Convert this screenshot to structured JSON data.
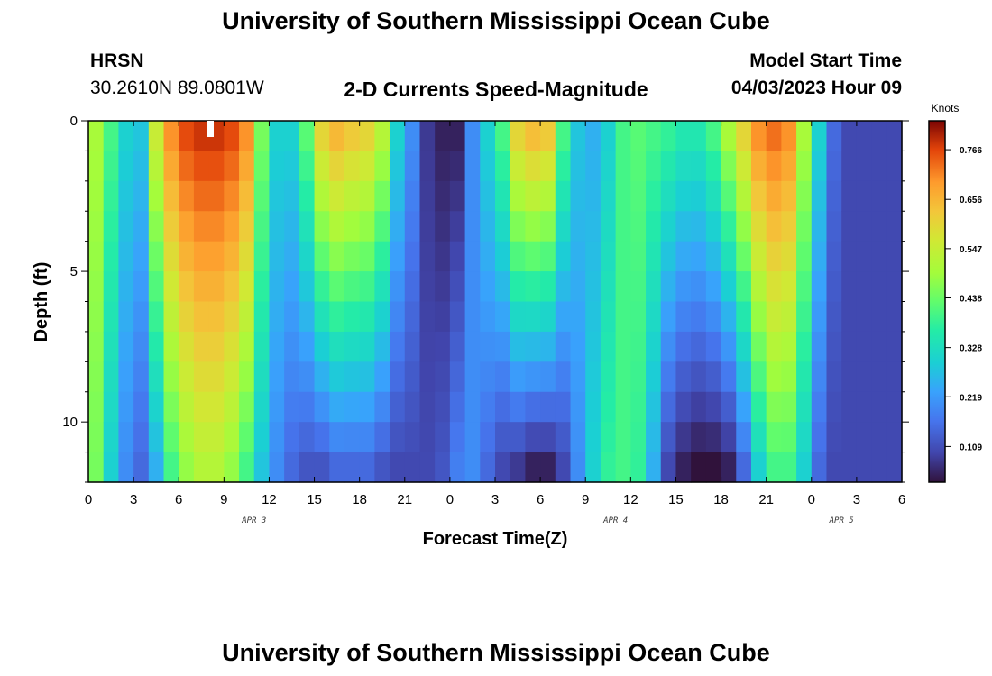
{
  "page": {
    "title": "University of Southern Mississippi Ocean Cube",
    "footer_title": "University of Southern Mississippi Ocean Cube",
    "station": "HRSN",
    "coords": "30.2610N  89.0801W",
    "plot_title": "2-D Currents Speed-Magnitude",
    "model_label": "Model Start Time",
    "model_time": "04/03/2023 Hour 09"
  },
  "chart_data": {
    "type": "heatmap",
    "title": "2-D Currents Speed-Magnitude",
    "xlabel": "Forecast Time(Z)",
    "ylabel": "Depth (ft)",
    "x_tick_labels": [
      "0",
      "3",
      "6",
      "9",
      "12",
      "15",
      "18",
      "21",
      "0",
      "3",
      "6",
      "9",
      "12",
      "15",
      "18",
      "21",
      "0",
      "3",
      "6"
    ],
    "date_labels": [
      {
        "text": "APR 3",
        "hour": 11
      },
      {
        "text": "APR 4",
        "hour": 35
      },
      {
        "text": "APR 5",
        "hour": 50
      }
    ],
    "y_ticks": [
      0,
      5,
      10
    ],
    "ylim": [
      0,
      12
    ],
    "xlim_hours": [
      0,
      54
    ],
    "colorbar": {
      "unit": "Knots",
      "ticks": [
        "0.766",
        "0.656",
        "0.547",
        "0.438",
        "0.328",
        "0.219",
        "0.109"
      ],
      "tick_values": [
        0.766,
        0.656,
        0.547,
        0.438,
        0.328,
        0.219,
        0.109
      ],
      "range": [
        0.03,
        0.83
      ]
    },
    "depth_levels": [
      0.5,
      1.5,
      2.5,
      3.5,
      4.5,
      5.5,
      6.5,
      7.5,
      8.5,
      9.5,
      10.5,
      11.5
    ],
    "speed_profile_knots": {
      "hours": [
        0,
        1,
        2,
        3,
        4,
        5,
        6,
        7,
        8,
        9,
        10,
        11,
        12,
        13,
        14,
        15,
        16,
        17,
        18,
        19,
        20,
        21,
        22,
        23,
        24,
        25,
        26,
        27,
        28,
        29,
        30,
        31,
        32,
        33,
        34,
        35,
        36,
        37,
        38,
        39,
        40,
        41,
        42,
        43,
        44,
        45,
        46,
        47,
        48,
        49,
        50,
        51,
        52,
        53,
        54
      ],
      "surface": [
        0.5,
        0.4,
        0.3,
        0.28,
        0.55,
        0.7,
        0.76,
        0.78,
        0.78,
        0.76,
        0.7,
        0.45,
        0.3,
        0.3,
        0.42,
        0.6,
        0.65,
        0.62,
        0.6,
        0.52,
        0.3,
        0.2,
        0.08,
        0.05,
        0.05,
        0.2,
        0.3,
        0.4,
        0.6,
        0.64,
        0.62,
        0.4,
        0.28,
        0.25,
        0.3,
        0.4,
        0.42,
        0.4,
        0.38,
        0.35,
        0.35,
        0.4,
        0.5,
        0.6,
        0.7,
        0.73,
        0.7,
        0.5,
        0.3,
        0.15,
        0.1,
        0.1,
        0.1,
        0.1,
        0.1
      ],
      "bottom": [
        0.45,
        0.3,
        0.2,
        0.15,
        0.25,
        0.4,
        0.48,
        0.52,
        0.52,
        0.48,
        0.4,
        0.28,
        0.2,
        0.15,
        0.12,
        0.12,
        0.15,
        0.15,
        0.15,
        0.12,
        0.1,
        0.1,
        0.1,
        0.12,
        0.18,
        0.2,
        0.15,
        0.1,
        0.08,
        0.05,
        0.05,
        0.1,
        0.2,
        0.3,
        0.38,
        0.4,
        0.38,
        0.25,
        0.1,
        0.05,
        0.03,
        0.03,
        0.05,
        0.15,
        0.3,
        0.4,
        0.4,
        0.3,
        0.15,
        0.1,
        0.1,
        0.1,
        0.1,
        0.1,
        0.1
      ]
    }
  }
}
